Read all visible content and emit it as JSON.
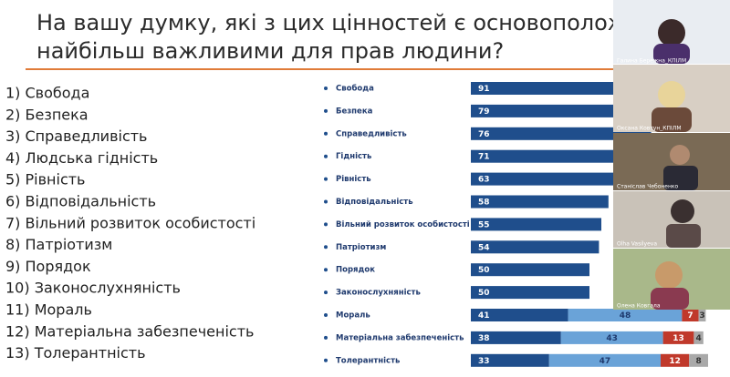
{
  "slide": {
    "title_lines": [
      "На вашу думку, які з цих цінностей є основополож",
      "найбільш важливими для прав людини?"
    ],
    "items": [
      "1) Свобода",
      "2) Безпека",
      "3) Справедливість",
      "4) Людська гідність",
      "5) Рівність",
      "6) Відповідальність",
      "7) Вільний розвиток особистості",
      "8) Патріотизм",
      "9) Порядок",
      "10) Законослухняність",
      "11) Мораль",
      "12) Матеріальна забезпеченість",
      "13) Толерантність"
    ]
  },
  "chart_data": {
    "type": "bar",
    "orientation": "horizontal",
    "stacked": true,
    "categories": [
      "Свобода",
      "Безпека",
      "Справедливість",
      "Гідність",
      "Рівність",
      "Відповідальність",
      "Вільний розвиток особистості",
      "Патріотизм",
      "Порядок",
      "Законослухняність",
      "Мораль",
      "Матеріальна забезпеченість",
      "Толерантність"
    ],
    "series": [
      {
        "color": "#1f4e8c",
        "values": [
          91,
          79,
          76,
          71,
          63,
          58,
          55,
          54,
          50,
          50,
          41,
          38,
          33
        ]
      },
      {
        "color": "#6aa3d8",
        "values": [
          null,
          null,
          null,
          null,
          null,
          null,
          null,
          null,
          null,
          null,
          48,
          43,
          47
        ]
      },
      {
        "color": "#c0392b",
        "values": [
          null,
          null,
          null,
          null,
          null,
          null,
          null,
          null,
          null,
          null,
          7,
          13,
          12
        ]
      },
      {
        "color": "#a9a9a9",
        "values": [
          null,
          null,
          null,
          null,
          null,
          null,
          null,
          null,
          null,
          null,
          3,
          4,
          8
        ]
      }
    ]
  },
  "participants": [
    "Галина Бережна_КПІЛМ",
    "Оксана Ковтун_КПІЛМ",
    "Станіслав Чебоненко",
    "Olha Vasilyeva",
    "Олена Ковгала"
  ]
}
